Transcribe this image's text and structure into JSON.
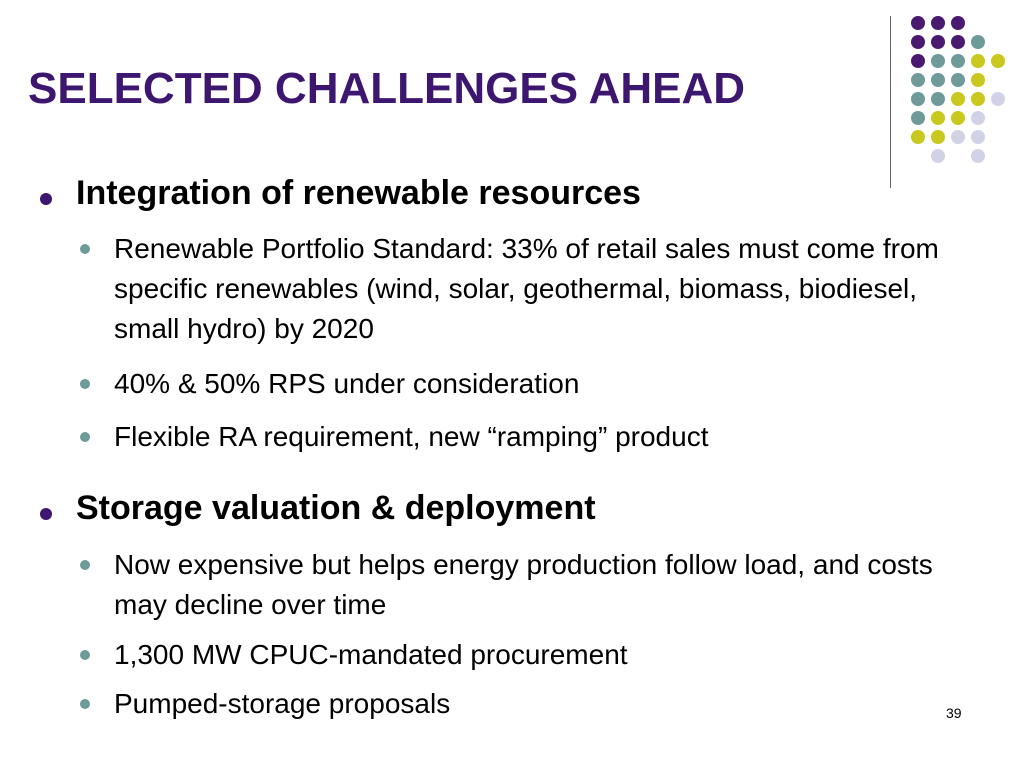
{
  "slide": {
    "title": "SELECTED CHALLENGES AHEAD",
    "page_number": "39"
  },
  "colors": {
    "title": "#3d1670",
    "dot_purple": "#4a1a70",
    "dot_teal": "#6e9a9a",
    "dot_yellow": "#c8c81e",
    "dot_lavender": "#d2d2e6",
    "sub_bullet": "#6e9a9a",
    "main_bullet": "#3d1670"
  },
  "sections": [
    {
      "heading": "Integration of renewable resources",
      "items": [
        "Renewable Portfolio Standard:  33% of retail sales must come from specific renewables (wind, solar, geothermal, biomass, biodiesel, small hydro) by 2020",
        "40% & 50% RPS under consideration",
        "Flexible RA requirement, new “ramping” product"
      ]
    },
    {
      "heading": "Storage valuation & deployment",
      "items": [
        "Now expensive but helps energy production follow load, and costs may decline over time",
        "1,300 MW CPUC-mandated procurement",
        "Pumped-storage proposals"
      ]
    }
  ]
}
